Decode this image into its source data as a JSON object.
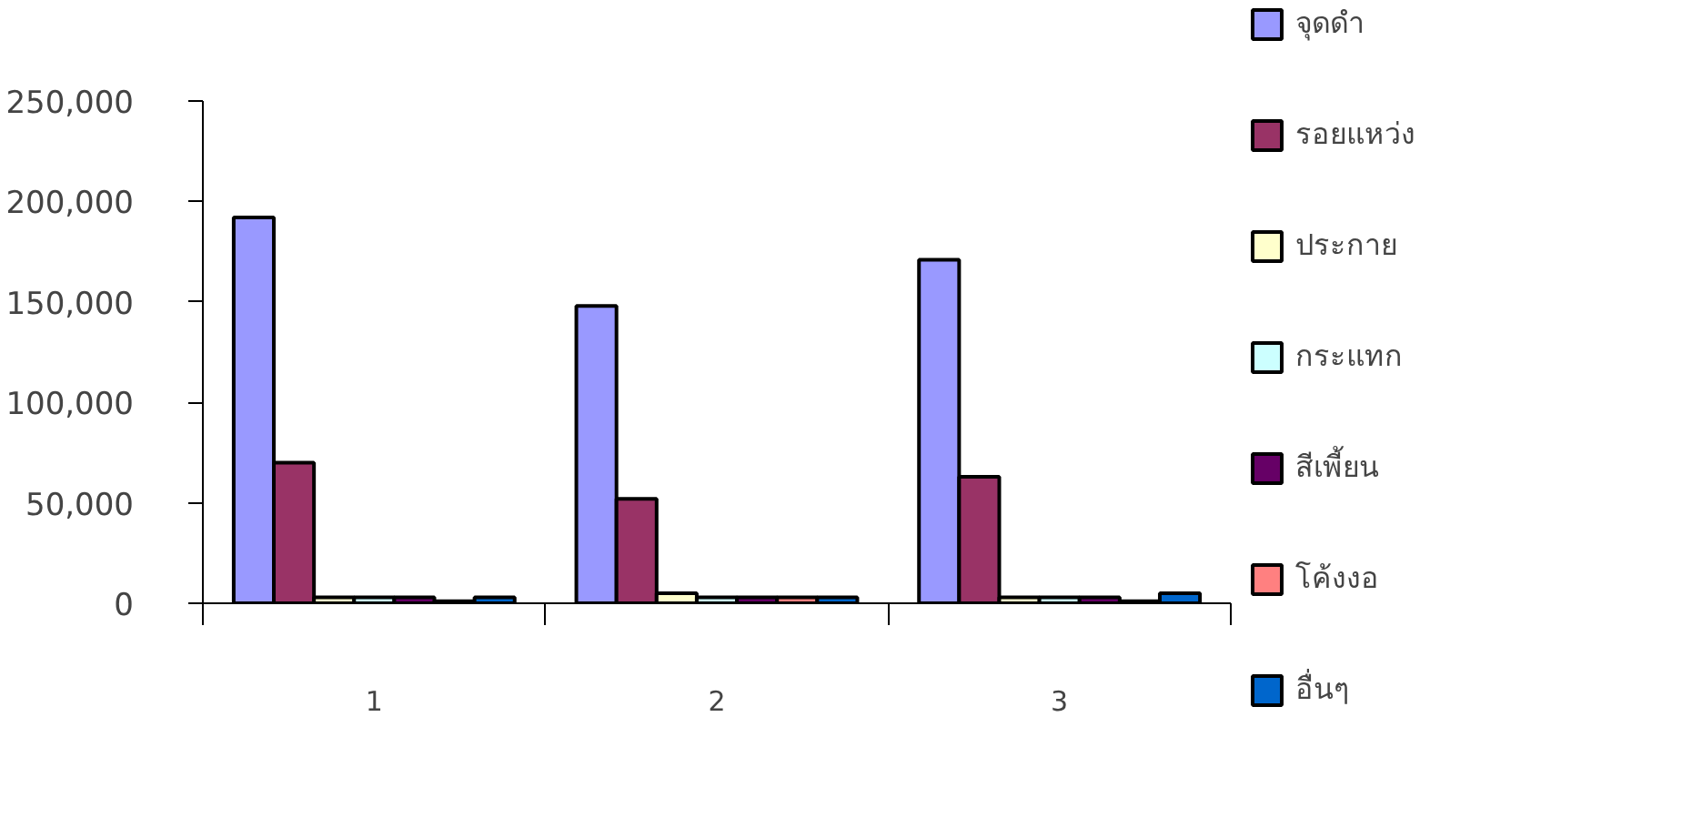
{
  "chart_data": {
    "type": "bar",
    "categories": [
      "1",
      "2",
      "3"
    ],
    "series": [
      {
        "name": "จุดดำ",
        "color": "#9999ff",
        "values": [
          192000,
          148000,
          171000
        ]
      },
      {
        "name": "รอยแหว่ง",
        "color": "#993366",
        "values": [
          70000,
          52000,
          63000
        ]
      },
      {
        "name": "ประกาย",
        "color": "#ffffcc",
        "values": [
          3000,
          5000,
          3000
        ]
      },
      {
        "name": "กระแทก",
        "color": "#ccffff",
        "values": [
          3000,
          3000,
          3000
        ]
      },
      {
        "name": "สีเพี้ยน",
        "color": "#660066",
        "values": [
          3000,
          3000,
          3000
        ]
      },
      {
        "name": "โค้งงอ",
        "color": "#ff8080",
        "values": [
          1000,
          3000,
          1000
        ]
      },
      {
        "name": "อื่นๆ",
        "color": "#0066cc",
        "values": [
          3000,
          3000,
          5000
        ]
      }
    ],
    "ylim": [
      0,
      250000
    ],
    "yticks": [
      {
        "value": 0,
        "label": "0"
      },
      {
        "value": 50000,
        "label": "50,000"
      },
      {
        "value": 100000,
        "label": "100,000"
      },
      {
        "value": 150000,
        "label": "150,000"
      },
      {
        "value": 200000,
        "label": "200,000"
      },
      {
        "value": 250000,
        "label": "250,000"
      }
    ],
    "grid": false,
    "legend": "right"
  }
}
